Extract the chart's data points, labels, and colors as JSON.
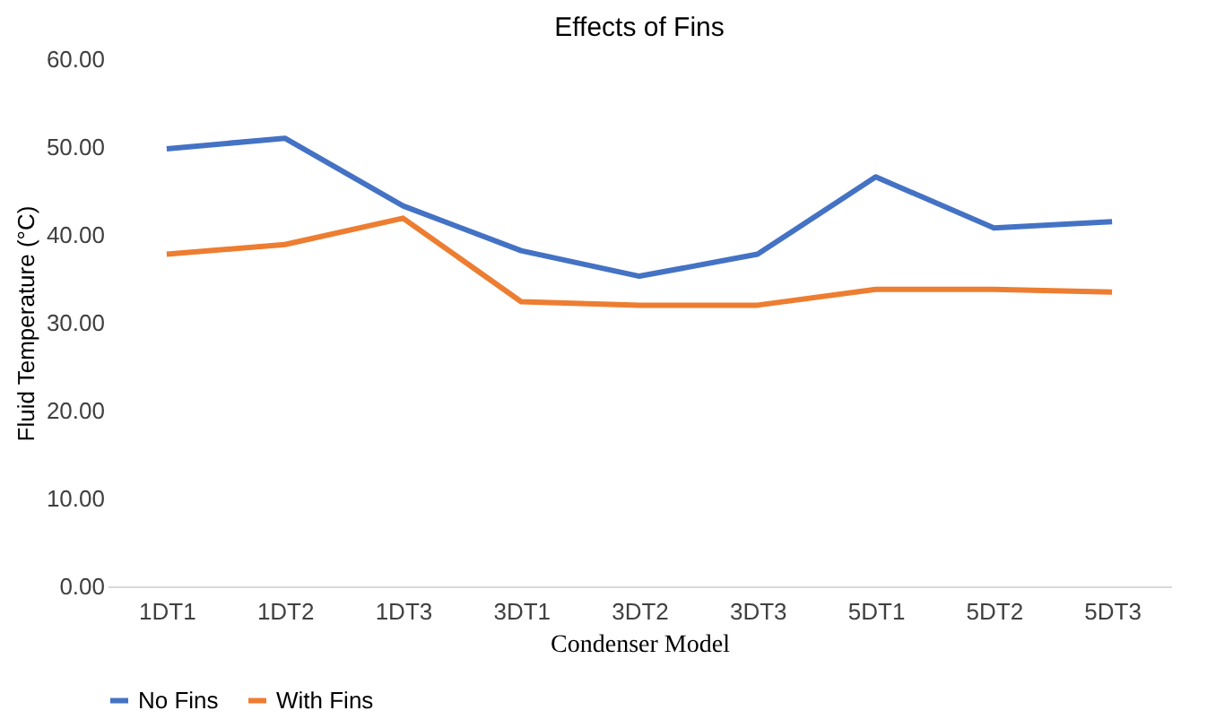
{
  "chart_data": {
    "type": "line",
    "title": "Effects of Fins",
    "xlabel": "Condenser Model",
    "ylabel": "Fluid Temperature (°C)",
    "categories": [
      "1DT1",
      "1DT2",
      "1DT3",
      "3DT1",
      "3DT2",
      "3DT3",
      "5DT1",
      "5DT2",
      "5DT3"
    ],
    "series": [
      {
        "name": "No Fins",
        "color": "#4472c4",
        "values": [
          49.8,
          51.0,
          43.3,
          38.2,
          35.3,
          37.8,
          46.6,
          40.8,
          41.5
        ]
      },
      {
        "name": "With Fins",
        "color": "#ed7d31",
        "values": [
          37.8,
          38.9,
          41.9,
          32.4,
          32.0,
          32.0,
          33.8,
          33.8,
          33.5
        ]
      }
    ],
    "ylim": [
      0,
      60
    ],
    "yticks": [
      {
        "value": 0,
        "label": "0.00"
      },
      {
        "value": 10,
        "label": "10.00"
      },
      {
        "value": 20,
        "label": "20.00"
      },
      {
        "value": 30,
        "label": "30.00"
      },
      {
        "value": 40,
        "label": "40.00"
      },
      {
        "value": 50,
        "label": "50.00"
      },
      {
        "value": 60,
        "label": "60.00"
      }
    ],
    "grid": false,
    "legend": "bottom",
    "marker": "none",
    "line_style": "solid"
  }
}
